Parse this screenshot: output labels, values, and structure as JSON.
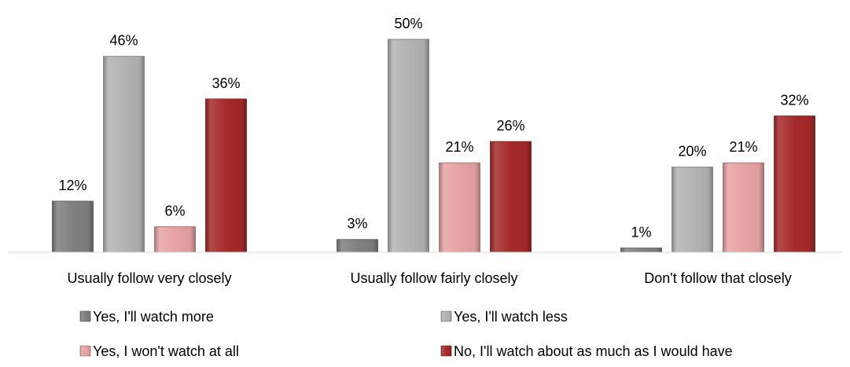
{
  "chart_data": {
    "type": "bar",
    "categories": [
      "Usually follow very closely",
      "Usually follow fairly closely",
      "Don't follow that closely"
    ],
    "series": [
      {
        "name": "Yes, I'll watch more",
        "values": [
          12,
          3,
          1
        ],
        "labels": [
          "12%",
          "3%",
          "1%"
        ],
        "color": "#808080"
      },
      {
        "name": "Yes, I'll watch less",
        "values": [
          46,
          50,
          20
        ],
        "labels": [
          "46%",
          "50%",
          "20%"
        ],
        "color": "#b3b3b3"
      },
      {
        "name": "Yes, I won't watch at all",
        "values": [
          6,
          21,
          21
        ],
        "labels": [
          "6%",
          "21%",
          "21%"
        ],
        "color": "#e8a3a3"
      },
      {
        "name": "No, I'll watch about as much as I would have",
        "values": [
          36,
          26,
          32
        ],
        "labels": [
          "36%",
          "26%",
          "32%"
        ],
        "color": "#a52a2a"
      }
    ],
    "unit": "%",
    "ylim": [
      0,
      50
    ],
    "grid": false,
    "legend_position": "bottom"
  }
}
